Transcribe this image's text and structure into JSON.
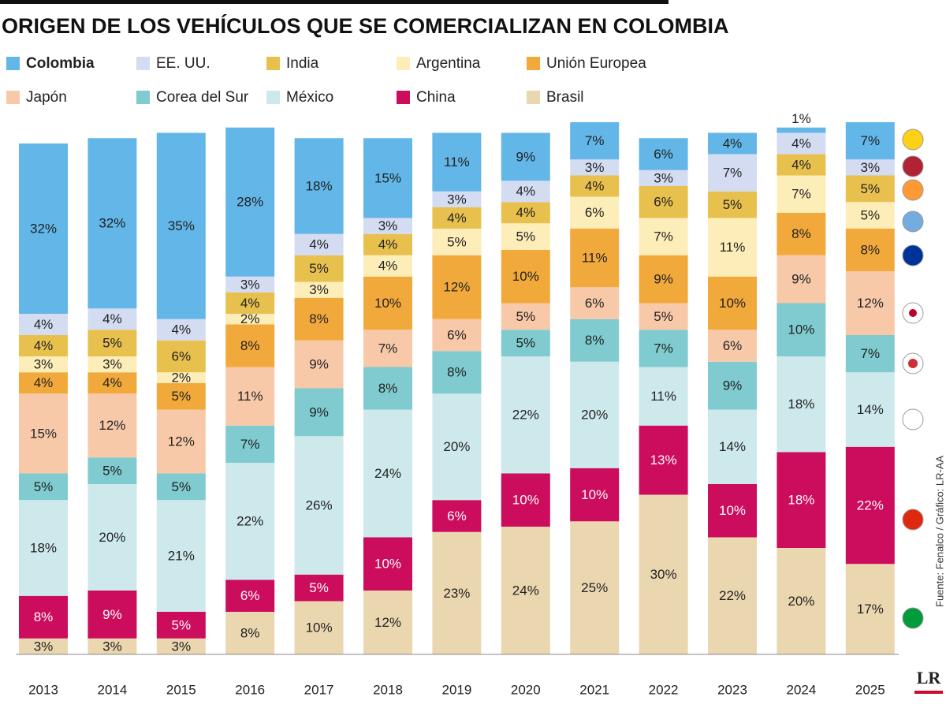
{
  "chart_data": {
    "type": "stacked-bar",
    "title": "ORIGEN DE LOS VEHÍCULOS QUE SE COMERCIALIZAN EN COLOMBIA",
    "source": "Fuente: Fenalco / Gráfico: LR-AA",
    "logo": "LR",
    "categories": [
      "2013",
      "2014",
      "2015",
      "2016",
      "2017",
      "2018",
      "2019",
      "2020",
      "2021",
      "2022",
      "2023",
      "2024",
      "2025"
    ],
    "series": [
      {
        "name": "Brasil",
        "color": "#ead7b0",
        "values": [
          3,
          3,
          3,
          8,
          10,
          12,
          23,
          24,
          25,
          30,
          22,
          20,
          17
        ],
        "value_labels": [
          "3%",
          "3%",
          "3%",
          "8%",
          "10%",
          "12%",
          "23%",
          "24%",
          "25%",
          "30%",
          "22%",
          "20%",
          "17%"
        ]
      },
      {
        "name": "China",
        "color": "#cc0c5c",
        "values": [
          8,
          9,
          5,
          6,
          5,
          10,
          6,
          10,
          10,
          13,
          10,
          18,
          22
        ],
        "value_labels": [
          "8%",
          "9%",
          "5%",
          "6%",
          "5%",
          "10%",
          "6%",
          "10%",
          "10%",
          "13%",
          "10%",
          "18%",
          "22%"
        ]
      },
      {
        "name": "México",
        "color": "#cde9ec",
        "values": [
          18,
          20,
          21,
          22,
          26,
          24,
          20,
          22,
          20,
          11,
          14,
          18,
          14
        ],
        "value_labels": [
          "18%",
          "20%",
          "21%",
          "22%",
          "26%",
          "24%",
          "20%",
          "22%",
          "20%",
          "11%",
          "14%",
          "18%",
          "14%"
        ]
      },
      {
        "name": "Corea del Sur",
        "color": "#7fcbcf",
        "values": [
          5,
          5,
          5,
          7,
          9,
          8,
          8,
          5,
          8,
          7,
          9,
          10,
          7
        ],
        "value_labels": [
          "5%",
          "5%",
          "5%",
          "7%",
          "9%",
          "8%",
          "8%",
          "5%",
          "8%",
          "7%",
          "9%",
          "10%",
          "7%"
        ]
      },
      {
        "name": "Japón",
        "color": "#f8c9a9",
        "values": [
          15,
          12,
          12,
          11,
          9,
          7,
          6,
          5,
          6,
          5,
          6,
          9,
          12
        ],
        "value_labels": [
          "15%",
          "12%",
          "12%",
          "11%",
          "9%",
          "7%",
          "6%",
          "5%",
          "6%",
          "5%",
          "6%",
          "9%",
          "12%"
        ]
      },
      {
        "name": "Unión Europea",
        "color": "#f2a93b",
        "values": [
          4,
          4,
          5,
          8,
          8,
          10,
          12,
          10,
          11,
          9,
          10,
          8,
          8
        ],
        "value_labels": [
          "4%",
          "4%",
          "5%",
          "8%",
          "8%",
          "10%",
          "12%",
          "10%",
          "11%",
          "9%",
          "10%",
          "8%",
          "8%"
        ]
      },
      {
        "name": "Argentina",
        "color": "#fdedb8",
        "values": [
          3,
          3,
          2,
          2,
          3,
          4,
          5,
          5,
          6,
          7,
          11,
          7,
          5
        ],
        "value_labels": [
          "3%",
          "3%",
          "2%",
          "2%",
          "3%",
          "4%",
          "5%",
          "5%",
          "6%",
          "7%",
          "11%",
          "7%",
          "5%"
        ]
      },
      {
        "name": "India",
        "color": "#e8c04e",
        "values": [
          4,
          5,
          6,
          4,
          5,
          4,
          4,
          4,
          4,
          6,
          5,
          4,
          5
        ],
        "value_labels": [
          "4%",
          "5%",
          "6%",
          "4%",
          "5%",
          "4%",
          "4%",
          "4%",
          "4%",
          "6%",
          "5%",
          "4%",
          "5%"
        ]
      },
      {
        "name": "EE. UU.",
        "color": "#d4dcf2",
        "values": [
          4,
          4,
          4,
          3,
          4,
          3,
          3,
          4,
          3,
          3,
          7,
          4,
          3
        ],
        "value_labels": [
          "4%",
          "4%",
          "4%",
          "3%",
          "4%",
          "3%",
          "3%",
          "4%",
          "3%",
          "3%",
          "7%",
          "4%",
          "3%"
        ]
      },
      {
        "name": "Colombia",
        "color": "#62b6e8",
        "values": [
          32,
          32,
          35,
          28,
          18,
          15,
          11,
          9,
          7,
          6,
          4,
          1,
          7
        ],
        "value_labels": [
          "32%",
          "32%",
          "35%",
          "28%",
          "18%",
          "15%",
          "11%",
          "9%",
          "7%",
          "6%",
          "4%",
          "1%",
          "7%"
        ]
      }
    ]
  }
}
